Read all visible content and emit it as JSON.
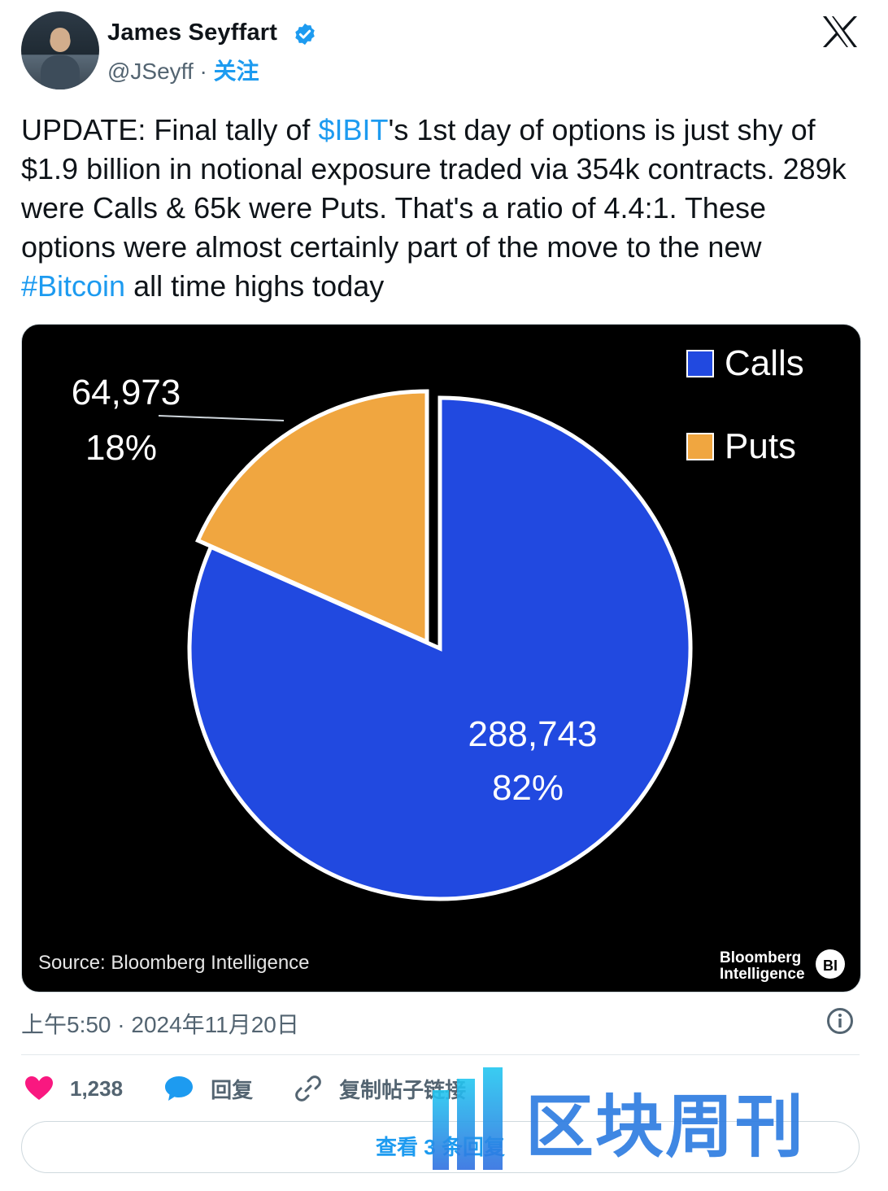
{
  "author": {
    "name": "James Seyffart",
    "handle": "@JSeyff",
    "separator": "·",
    "follow_label": "关注"
  },
  "tweet": {
    "seg1": "UPDATE: Final tally of ",
    "cashtag": "$IBIT",
    "seg2": "'s 1st day of options is just shy of $1.9 billion in notional exposure traded via 354k contracts. 289k were Calls & 65k were Puts. That's a ratio of 4.4:1. These options were almost certainly part of the move to the new ",
    "hashtag": "#Bitcoin",
    "seg3": " all time highs today"
  },
  "chart_data": {
    "type": "pie",
    "series": [
      {
        "name": "Calls",
        "value": 288743,
        "value_label": "288,743",
        "percent_label": "82%",
        "color": "#2149e0"
      },
      {
        "name": "Puts",
        "value": 64973,
        "value_label": "64,973",
        "percent_label": "18%",
        "color": "#f0a640"
      }
    ],
    "legend_position": "top-right",
    "background": "#000000",
    "source": "Source: Bloomberg Intelligence",
    "brand_line1": "Bloomberg",
    "brand_line2": "Intelligence",
    "brand_badge": "BI"
  },
  "meta": {
    "timestamp": "上午5:50 · 2024年11月20日"
  },
  "actions": {
    "likes": "1,238",
    "reply_label": "回复",
    "copy_label": "复制帖子链接"
  },
  "replies_button": "查看 3 条回复",
  "watermark_text": "区块周刊",
  "colors": {
    "link": "#1d9bf0",
    "heart": "#f91880",
    "reply_bubble": "#1d9bf0"
  }
}
